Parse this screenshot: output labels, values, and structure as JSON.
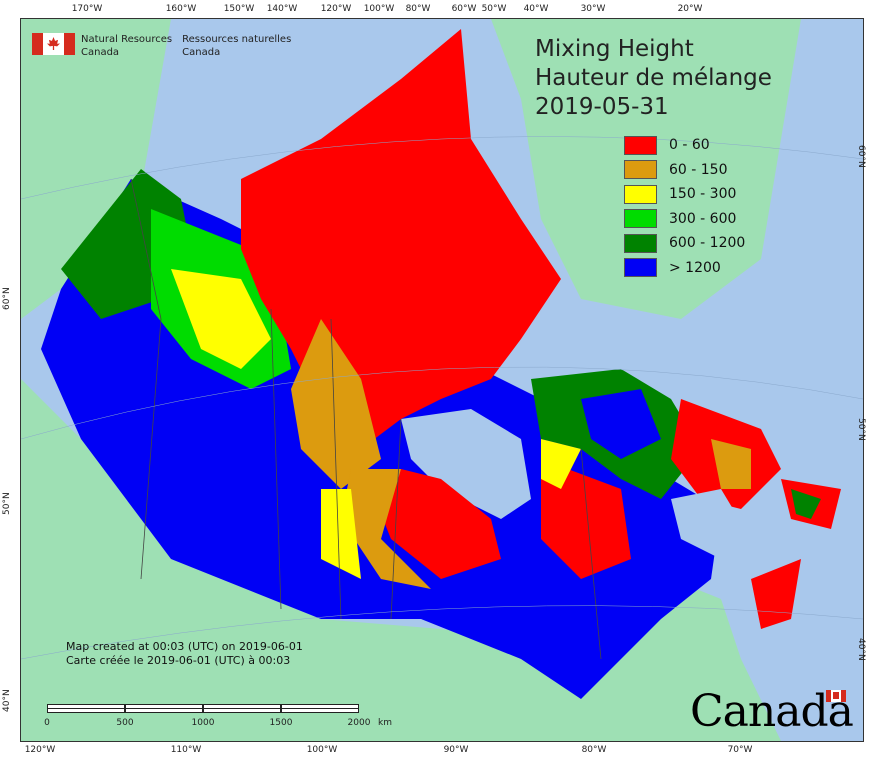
{
  "map": {
    "title_en": "Mixing Height",
    "title_fr": "Hauteur de mélange",
    "date": "2019-05-31",
    "legend": [
      {
        "label": "0 - 60",
        "color": "#ff0000"
      },
      {
        "label": "60 - 150",
        "color": "#dc9b0f"
      },
      {
        "label": "150 - 300",
        "color": "#ffff00"
      },
      {
        "label": "300 - 600",
        "color": "#00dc00"
      },
      {
        "label": "600 - 1200",
        "color": "#008200"
      },
      {
        "label": "> 1200",
        "color": "#0000f5"
      }
    ],
    "colors": {
      "ocean": "#a9c8ec",
      "land_outside": "#9ee0b4",
      "boundary": "#444444"
    }
  },
  "agency": {
    "en_line1": "Natural Resources",
    "en_line2": "Canada",
    "fr_line1": "Ressources naturelles",
    "fr_line2": "Canada"
  },
  "footer": {
    "created_en": "Map created at 00:03 (UTC) on 2019-06-01",
    "created_fr": "Carte créée le 2019-06-01 (UTC) à 00:03"
  },
  "scalebar": {
    "labels": [
      "0",
      "500",
      "1000",
      "1500",
      "2000"
    ],
    "unit": "km"
  },
  "graticule": {
    "top_ticks": [
      "170°W",
      "160°W",
      "150°W",
      "140°W",
      "120°W",
      "100°W",
      "80°W",
      "60°W",
      "50°W",
      "40°W",
      "30°W",
      "20°W"
    ],
    "bottom_ticks": [
      "120°W",
      "110°W",
      "100°W",
      "90°W",
      "80°W",
      "70°W"
    ],
    "left_ticks": [
      "60°N",
      "50°N",
      "40°N"
    ],
    "right_ticks": [
      "60°N",
      "50°N",
      "40°N"
    ]
  },
  "wordmark": "Canada"
}
